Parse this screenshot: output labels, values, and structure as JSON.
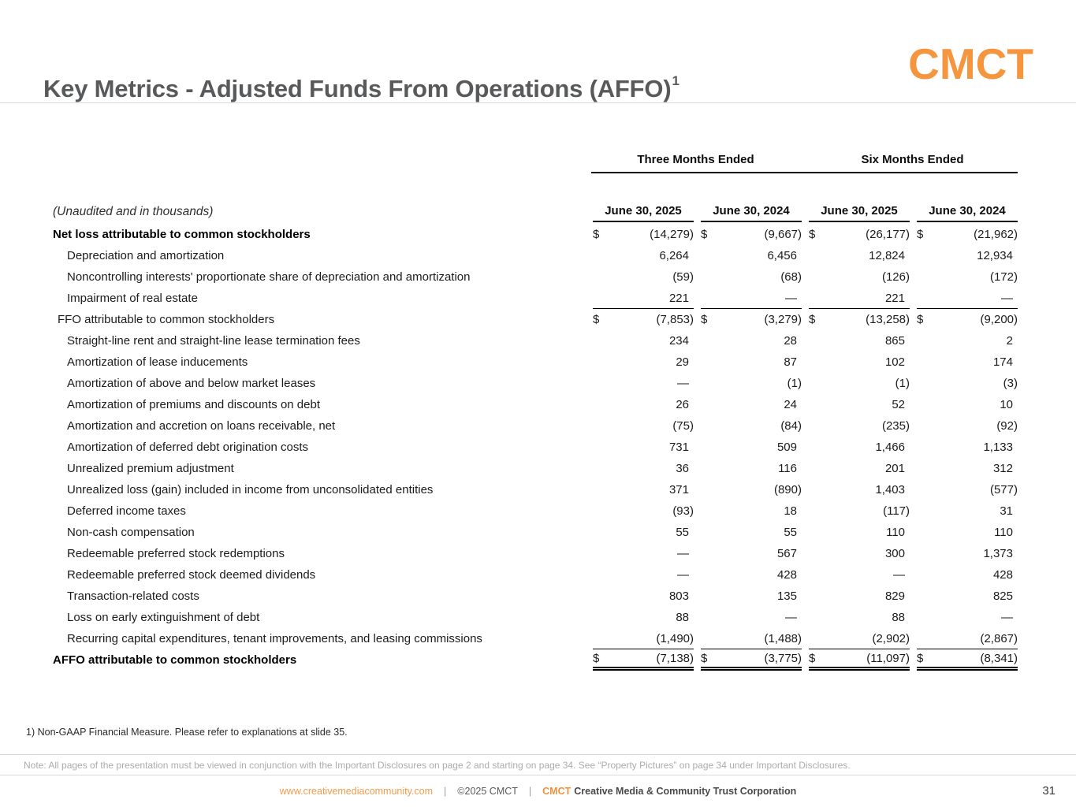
{
  "slide": {
    "title": "Key Metrics - Adjusted Funds From Operations (AFFO)",
    "title_superscript": "1",
    "logo_text": "CMCT"
  },
  "table": {
    "unaudited_note": "(Unaudited and in thousands)",
    "currency_symbol": "$",
    "group_headers": [
      "Three Months Ended",
      "Six Months Ended"
    ],
    "column_headers": [
      "June 30, 2025",
      "June 30, 2024",
      "June 30, 2025",
      "June 30, 2024"
    ],
    "rows": [
      {
        "label": "Net loss attributable to common stockholders",
        "style": "bold",
        "dollar": true,
        "values": [
          "(14,279)",
          "(9,667)",
          "(26,177)",
          "(21,962)"
        ]
      },
      {
        "label": "Depreciation and amortization",
        "style": "indent",
        "values": [
          "6,264",
          "6,456",
          "12,824",
          "12,934"
        ]
      },
      {
        "label": "Noncontrolling interests' proportionate share of depreciation and amortization",
        "style": "indent",
        "values": [
          "(59)",
          "(68)",
          "(126)",
          "(172)"
        ]
      },
      {
        "label": "Impairment of real estate",
        "style": "indent",
        "rule_below": true,
        "values": [
          "221",
          "—",
          "221",
          "—"
        ]
      },
      {
        "label": "FFO attributable to common stockholders",
        "style": "subtotal",
        "dollar": true,
        "values": [
          "(7,853)",
          "(3,279)",
          "(13,258)",
          "(9,200)"
        ]
      },
      {
        "label": "Straight-line rent and straight-line lease termination fees",
        "style": "indent",
        "values": [
          "234",
          "28",
          "865",
          "2"
        ]
      },
      {
        "label": "Amortization of lease inducements",
        "style": "indent",
        "values": [
          "29",
          "87",
          "102",
          "174"
        ]
      },
      {
        "label": "Amortization of above and below market leases",
        "style": "indent",
        "values": [
          "—",
          "(1)",
          "(1)",
          "(3)"
        ]
      },
      {
        "label": "Amortization of premiums and discounts on debt",
        "style": "indent",
        "values": [
          "26",
          "24",
          "52",
          "10"
        ]
      },
      {
        "label": "Amortization and accretion on loans receivable, net",
        "style": "indent",
        "values": [
          "(75)",
          "(84)",
          "(235)",
          "(92)"
        ]
      },
      {
        "label": "Amortization of deferred debt origination costs",
        "style": "indent",
        "values": [
          "731",
          "509",
          "1,466",
          "1,133"
        ]
      },
      {
        "label": "Unrealized premium adjustment",
        "style": "indent",
        "values": [
          "36",
          "116",
          "201",
          "312"
        ]
      },
      {
        "label": "Unrealized loss (gain) included in income from unconsolidated entities",
        "style": "indent",
        "values": [
          "371",
          "(890)",
          "1,403",
          "(577)"
        ]
      },
      {
        "label": "Deferred income taxes",
        "style": "indent",
        "values": [
          "(93)",
          "18",
          "(117)",
          "31"
        ]
      },
      {
        "label": "Non-cash compensation",
        "style": "indent",
        "values": [
          "55",
          "55",
          "110",
          "110"
        ]
      },
      {
        "label": "Redeemable preferred stock redemptions",
        "style": "indent",
        "values": [
          "—",
          "567",
          "300",
          "1,373"
        ]
      },
      {
        "label": "Redeemable preferred stock deemed dividends",
        "style": "indent",
        "values": [
          "—",
          "428",
          "—",
          "428"
        ]
      },
      {
        "label": "Transaction-related costs",
        "style": "indent",
        "values": [
          "803",
          "135",
          "829",
          "825"
        ]
      },
      {
        "label": "Loss on early extinguishment of debt",
        "style": "indent",
        "values": [
          "88",
          "—",
          "88",
          "—"
        ]
      },
      {
        "label": "Recurring capital expenditures, tenant improvements, and leasing commissions",
        "style": "indent",
        "rule_below": true,
        "values": [
          "(1,490)",
          "(1,488)",
          "(2,902)",
          "(2,867)"
        ]
      },
      {
        "label": "AFFO attributable to common stockholders",
        "style": "total",
        "dollar": true,
        "double_rule_below": true,
        "values": [
          "(7,138)",
          "(3,775)",
          "(11,097)",
          "(8,341)"
        ]
      }
    ]
  },
  "footnote": "1) Non-GAAP Financial Measure. Please refer to explanations at slide 35.",
  "note_bar": "Note: All pages of the presentation must be viewed in conjunction with the Important Disclosures on page 2 and starting on page 34. See “Property Pictures” on page 34 under Important Disclosures.",
  "footer": {
    "url": "www.creativemediacommunity.com",
    "separator": "|",
    "copyright": "©2025 CMCT",
    "brand": "CMCT",
    "company": "Creative Media & Community Trust Corporation",
    "page_number": "31"
  },
  "colors": {
    "accent_orange": "#F5953E",
    "title_gray": "#58595B",
    "text_dark": "#1B1B1B",
    "rule_black": "#000000",
    "note_gray": "#ACACAC"
  }
}
